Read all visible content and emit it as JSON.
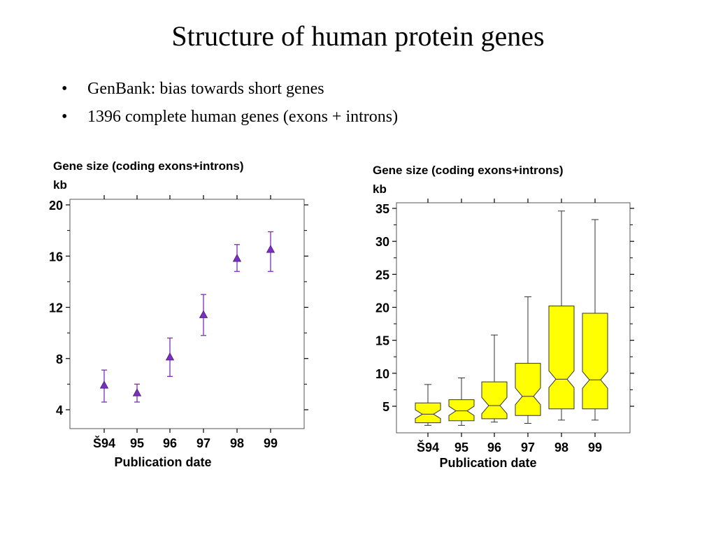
{
  "slide": {
    "title": "Structure of human protein genes",
    "bullets": [
      "GenBank: bias towards short genes",
      "1396 complete human genes (exons + introns)"
    ],
    "bullet_glyph": "•"
  },
  "chart_data": [
    {
      "type": "scatter",
      "ylabel_line1": "Gene size (coding exons+introns)",
      "ylabel_line2": "kb",
      "xlabel": "Publication date",
      "categories": [
        "Š94",
        "95",
        "96",
        "97",
        "98",
        "99"
      ],
      "yticks": [
        4,
        8,
        12,
        16,
        20
      ],
      "ylim": [
        2.5,
        20.3
      ],
      "series": [
        {
          "marker_color": "#7b2fbf",
          "values": [
            5.9,
            5.3,
            8.1,
            11.4,
            15.8,
            16.5
          ],
          "err_low": [
            4.6,
            4.6,
            6.6,
            9.8,
            14.8,
            14.8
          ],
          "err_high": [
            7.1,
            6.0,
            9.6,
            13.0,
            16.9,
            17.9
          ]
        }
      ],
      "grid": false
    },
    {
      "type": "boxplot",
      "ylabel_line1": "Gene size (coding exons+introns)",
      "ylabel_line2": "kb",
      "xlabel": "Publication date",
      "categories": [
        "Š94",
        "95",
        "96",
        "97",
        "98",
        "99"
      ],
      "yticks": [
        5,
        10,
        15,
        20,
        25,
        30,
        35
      ],
      "ylim": [
        1.3,
        36.3
      ],
      "box_color": "#ffff00",
      "boxes": [
        {
          "whisker_low": 2.1,
          "q1": 2.5,
          "median": 3.8,
          "q3": 5.5,
          "whisker_high": 8.3
        },
        {
          "whisker_low": 2.1,
          "q1": 2.8,
          "median": 4.3,
          "q3": 6.0,
          "whisker_high": 9.3
        },
        {
          "whisker_low": 2.6,
          "q1": 3.1,
          "median": 5.1,
          "q3": 8.7,
          "whisker_high": 15.8
        },
        {
          "whisker_low": 2.4,
          "q1": 3.6,
          "median": 6.5,
          "q3": 11.5,
          "whisker_high": 21.6
        },
        {
          "whisker_low": 2.9,
          "q1": 4.6,
          "median": 9.1,
          "q3": 20.2,
          "whisker_high": 34.6
        },
        {
          "whisker_low": 2.9,
          "q1": 4.6,
          "median": 9.0,
          "q3": 19.1,
          "whisker_high": 33.3
        }
      ],
      "grid": false
    }
  ]
}
